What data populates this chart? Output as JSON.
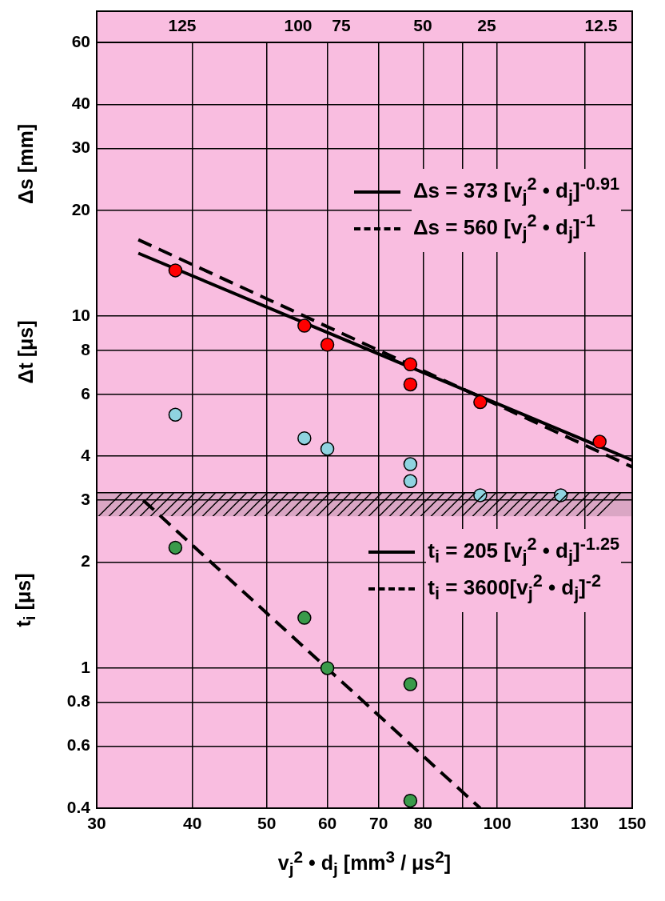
{
  "chart_data": {
    "type": "scatter",
    "xlabel": "v$_{j}$$^{2}$ • d$_{j}$ [mm$^{3}$ / μs$^{2}$]",
    "ylabel": "Δs [mm]",
    "annotations": [
      "Δt [μs]",
      "t$_{i}$ [μs]",
      "125",
      "100",
      "75",
      "50",
      "25",
      "12.5"
    ],
    "log": "xy",
    "grid": true,
    "legend": "right",
    "marker": "circle",
    "xlim": [
      30,
      150
    ],
    "xticks": [
      30,
      40,
      50,
      60,
      70,
      80,
      {
        "value": 90,
        "label": null
      },
      100,
      130,
      150
    ],
    "ylim": [
      0.4,
      60
    ],
    "yticks": [
      0.4,
      0.6,
      0.8,
      1,
      2,
      3,
      4,
      6,
      8,
      10,
      20,
      30,
      40,
      60
    ],
    "bands": [
      {
        "axis": "y",
        "from": 2.7,
        "to": 3.15,
        "color": "#000000"
      }
    ],
    "series": [
      {
        "color": "#ff0000",
        "x": [
          38,
          56,
          60,
          77,
          77,
          95,
          136
        ],
        "values": [
          13.5,
          9.4,
          8.3,
          7.3,
          6.4,
          5.7,
          4.4
        ]
      },
      {
        "color": "#8fd3e0",
        "x": [
          38,
          56,
          60,
          77,
          77,
          95,
          121
        ],
        "values": [
          5.25,
          4.5,
          4.2,
          3.8,
          3.4,
          3.1,
          3.1
        ]
      },
      {
        "color": "#3a9a4a",
        "x": [
          38,
          56,
          60,
          77,
          77
        ],
        "values": [
          2.2,
          1.39,
          1.0,
          0.9,
          0.42
        ]
      },
      {
        "type": "line",
        "name": "Δs = 373 [v$_{j}$$^{2}$ • d$_{j}$]$^{-0.91}$",
        "color": "#000000",
        "line_style": "solid",
        "marker": "none",
        "x": [
          34,
          150
        ],
        "values": [
          15.1,
          3.9
        ]
      },
      {
        "type": "line",
        "name": "Δs = 560 [v$_{j}$$^{2}$ • d$_{j}$]$^{-1}$",
        "color": "#000000",
        "line_style": "dashed",
        "marker": "none",
        "x": [
          34,
          150
        ],
        "values": [
          16.5,
          3.73
        ]
      },
      {
        "type": "line",
        "name": "t$_{i}$ =  205 [v$_{j}$$^{2}$ • d$_{j}$]$^{-1.25}$",
        "color": "#000000",
        "line_style": "solid",
        "marker": "none"
      },
      {
        "type": "line",
        "name": "t$_{i}$ = 3600[v$_{j}$$^{2}$ • d$_{j}$]$^{-2}$",
        "color": "#000000",
        "line_style": "dashed",
        "marker": "none",
        "x": [
          34.5,
          95
        ],
        "values": [
          3.0,
          0.4
        ]
      }
    ]
  }
}
